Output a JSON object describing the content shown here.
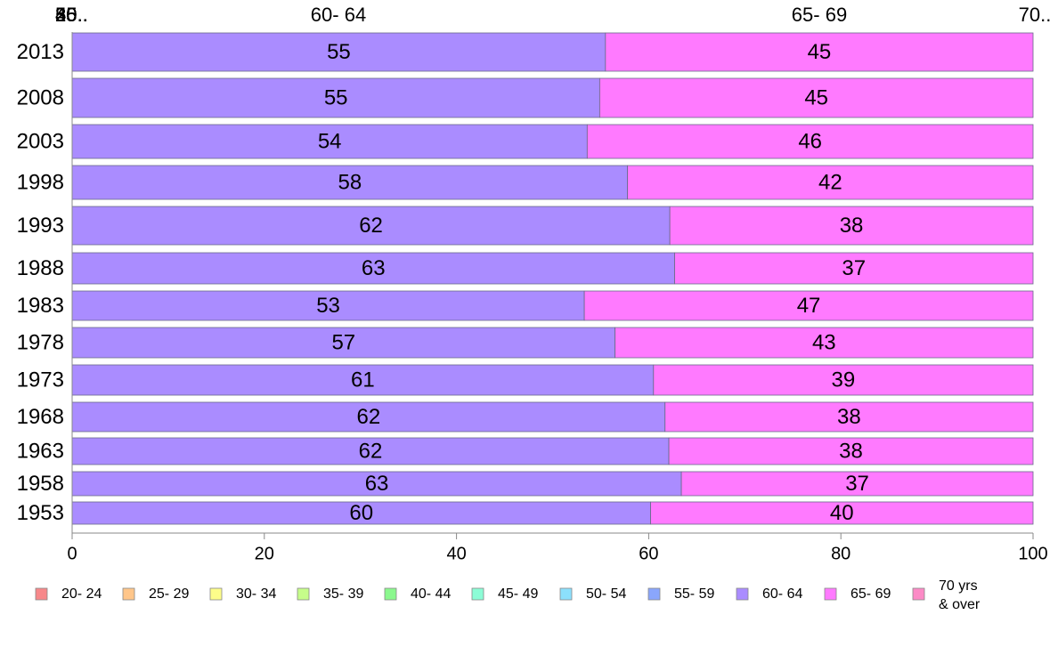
{
  "chart_data": {
    "type": "bar",
    "orientation": "horizontal",
    "stacked": true,
    "categories": [
      "2013",
      "2008",
      "2003",
      "1998",
      "1993",
      "1988",
      "1983",
      "1978",
      "1973",
      "1968",
      "1963",
      "1958",
      "1953"
    ],
    "series": [
      {
        "name": "20- 24",
        "color": "#f7888a",
        "values": [
          0,
          0,
          0,
          0,
          0,
          0,
          0,
          0,
          0,
          0,
          0,
          0,
          0
        ]
      },
      {
        "name": "25- 29",
        "color": "#ffc68a",
        "values": [
          0,
          0,
          0,
          0,
          0,
          0,
          0,
          0,
          0,
          0,
          0,
          0,
          0
        ]
      },
      {
        "name": "30- 34",
        "color": "#fdfd8a",
        "values": [
          0,
          0,
          0,
          0,
          0,
          0,
          0,
          0,
          0,
          0,
          0,
          0,
          0
        ]
      },
      {
        "name": "35- 39",
        "color": "#c6fd8a",
        "values": [
          0,
          0,
          0,
          0,
          0,
          0,
          0,
          0,
          0,
          0,
          0,
          0,
          0
        ]
      },
      {
        "name": "40- 44",
        "color": "#8bf88e",
        "values": [
          0,
          0,
          0,
          0,
          0,
          0,
          0,
          0,
          0,
          0,
          0,
          0,
          0
        ]
      },
      {
        "name": "45- 49",
        "color": "#8cfcd6",
        "values": [
          0,
          0,
          0,
          0,
          0,
          0,
          0,
          0,
          0,
          0,
          0,
          0,
          0
        ]
      },
      {
        "name": "50- 54",
        "color": "#8ce0fc",
        "values": [
          0,
          0,
          0,
          0,
          0,
          0,
          0,
          0,
          0,
          0,
          0,
          0,
          0
        ]
      },
      {
        "name": "55- 59",
        "color": "#8aa6fc",
        "values": [
          0,
          0,
          0,
          0,
          0,
          0,
          0,
          0,
          0,
          0,
          0,
          0,
          0
        ]
      },
      {
        "name": "60- 64",
        "color": "#aa8cff",
        "values": [
          55.5,
          54.9,
          53.6,
          57.8,
          62.2,
          62.7,
          53.3,
          56.5,
          60.5,
          61.7,
          62.1,
          63.4,
          60.2
        ]
      },
      {
        "name": "65- 69",
        "color": "#ff7aff",
        "values": [
          44.5,
          45.1,
          46.4,
          42.2,
          37.8,
          37.3,
          46.7,
          43.5,
          39.5,
          38.3,
          37.9,
          36.6,
          39.8
        ]
      },
      {
        "name": "70 yrs\n& over",
        "color": "#fc8ac6",
        "values": [
          0,
          0,
          0,
          0,
          0,
          0,
          0,
          0,
          0,
          0,
          0,
          0,
          0
        ]
      }
    ],
    "data_labels": [
      [
        "55",
        "45"
      ],
      [
        "55",
        "45"
      ],
      [
        "54",
        "46"
      ],
      [
        "58",
        "42"
      ],
      [
        "62",
        "38"
      ],
      [
        "63",
        "37"
      ],
      [
        "53",
        "47"
      ],
      [
        "57",
        "43"
      ],
      [
        "61",
        "39"
      ],
      [
        "62",
        "38"
      ],
      [
        "62",
        "38"
      ],
      [
        "63",
        "37"
      ],
      [
        "60",
        "40"
      ]
    ],
    "top_labels": [
      "20..",
      "25..",
      "30..",
      "35..",
      "40..",
      "45..",
      "50..",
      "55..",
      "60- 64",
      "65- 69",
      "70.."
    ],
    "xlim": [
      0,
      100
    ],
    "xticks": [
      "0",
      "20",
      "40",
      "60",
      "80",
      "100"
    ],
    "grid": false,
    "legend_position": "bottom"
  }
}
